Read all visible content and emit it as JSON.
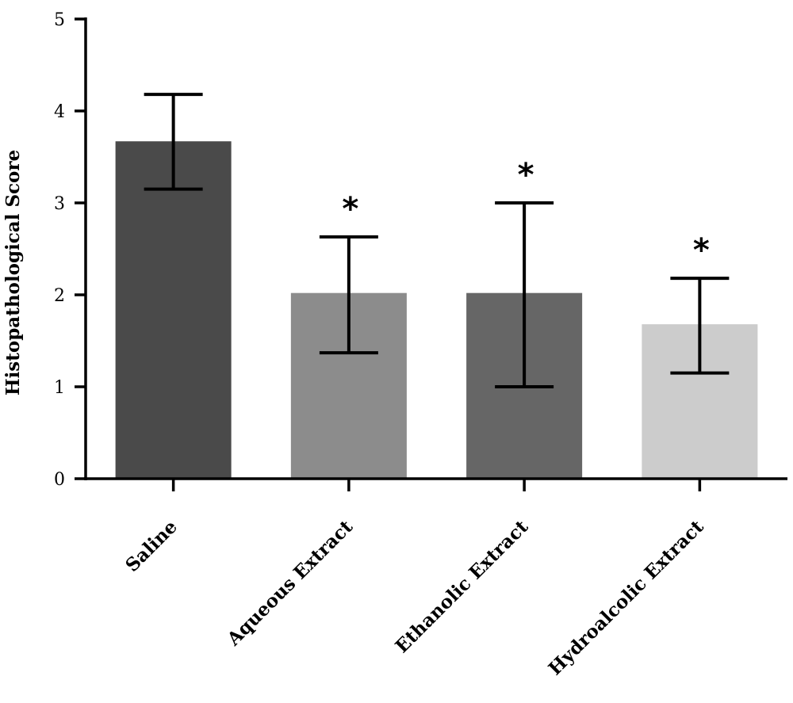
{
  "chart_data": {
    "type": "bar",
    "title": "",
    "xlabel": "",
    "ylabel": "Histopathological Score",
    "ylim": [
      0,
      5
    ],
    "yticks": [
      "0",
      "1",
      "2",
      "3",
      "4",
      "5"
    ],
    "grid": false,
    "categories": [
      "Saline",
      "Aqueous Extract",
      "Ethanolic Extract",
      "Hydroalcolic Extract"
    ],
    "values": [
      3.67,
      2.02,
      2.02,
      1.68
    ],
    "error_low": [
      3.15,
      1.37,
      1.0,
      1.15
    ],
    "error_high": [
      4.18,
      2.63,
      3.0,
      2.18
    ],
    "significance": [
      "",
      "*",
      "*",
      "*"
    ],
    "colors": [
      "#4a4a4a",
      "#8c8c8c",
      "#666666",
      "#cccccc"
    ]
  }
}
